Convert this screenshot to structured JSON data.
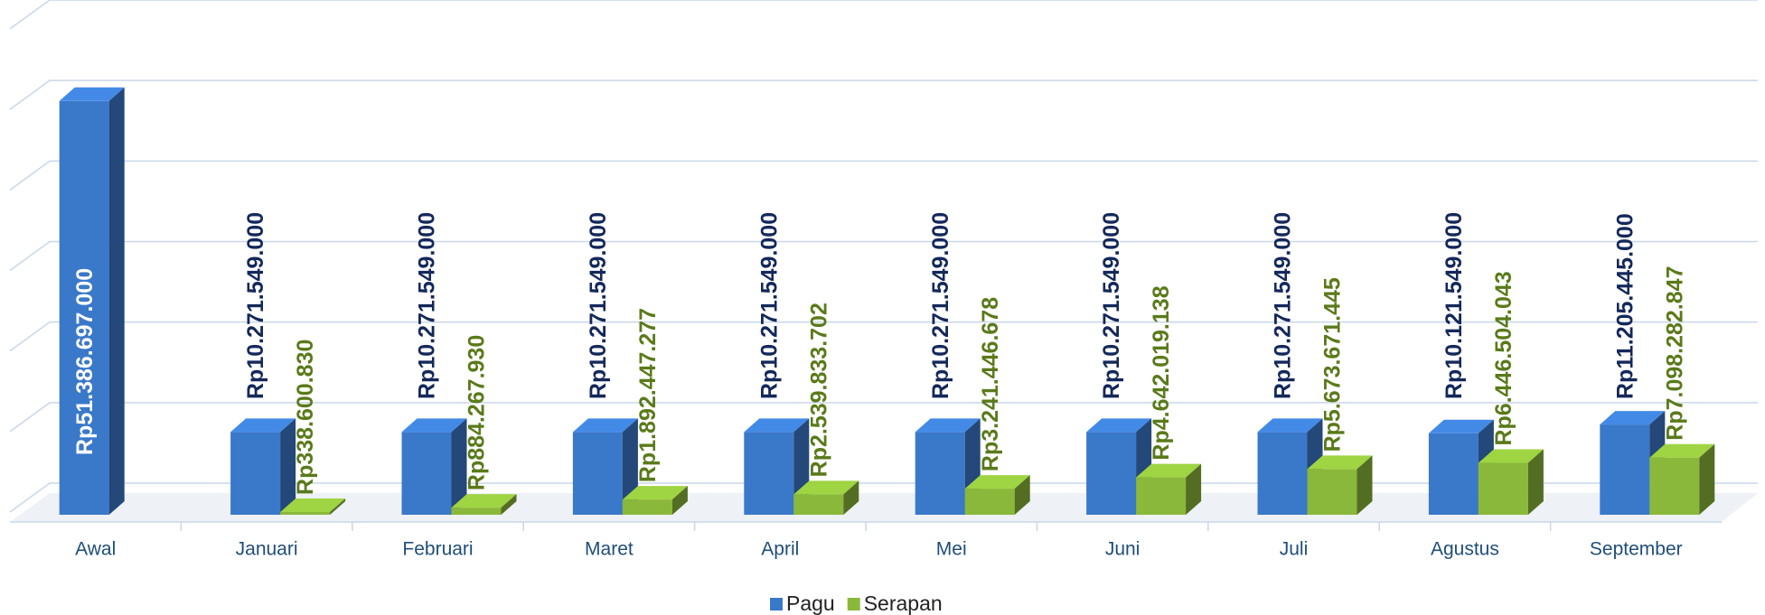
{
  "chart_data": {
    "type": "bar3d",
    "categories": [
      "Awal",
      "Januari",
      "Februari",
      "Maret",
      "April",
      "Mei",
      "Juni",
      "Juli",
      "Agustus",
      "September"
    ],
    "series": [
      {
        "name": "Pagu",
        "color": "#3a78c9",
        "values": [
          51386697000,
          10271549000,
          10271549000,
          10271549000,
          10271549000,
          10271549000,
          10271549000,
          10271549000,
          10121549000,
          11205445000
        ],
        "value_labels": [
          "Rp51.386.697.000",
          "Rp10.271.549.000",
          "Rp10.271.549.000",
          "Rp10.271.549.000",
          "Rp10.271.549.000",
          "Rp10.271.549.000",
          "Rp10.271.549.000",
          "Rp10.271.549.000",
          "Rp10.121.549.000",
          "Rp11.205.445.000"
        ]
      },
      {
        "name": "Serapan",
        "color": "#8ab83a",
        "values": [
          null,
          338600830,
          884267930,
          1892447277,
          2539833702,
          3241446678,
          4642019138,
          5673671445,
          6446504043,
          7098282847
        ],
        "value_labels": [
          null,
          "Rp338.600.830",
          "Rp884.267.930",
          "Rp1.892.447.277",
          "Rp2.539.833.702",
          "Rp3.241.446.678",
          "Rp4.642.019.138",
          "Rp5.673.671.445",
          "Rp6.446.504.043",
          "Rp7.098.282.847"
        ]
      }
    ],
    "ylim": [
      0,
      60000000000
    ],
    "yticks": [
      0,
      10000000000,
      20000000000,
      30000000000,
      40000000000,
      50000000000,
      60000000000
    ],
    "grid": true,
    "legend": "bottom"
  }
}
